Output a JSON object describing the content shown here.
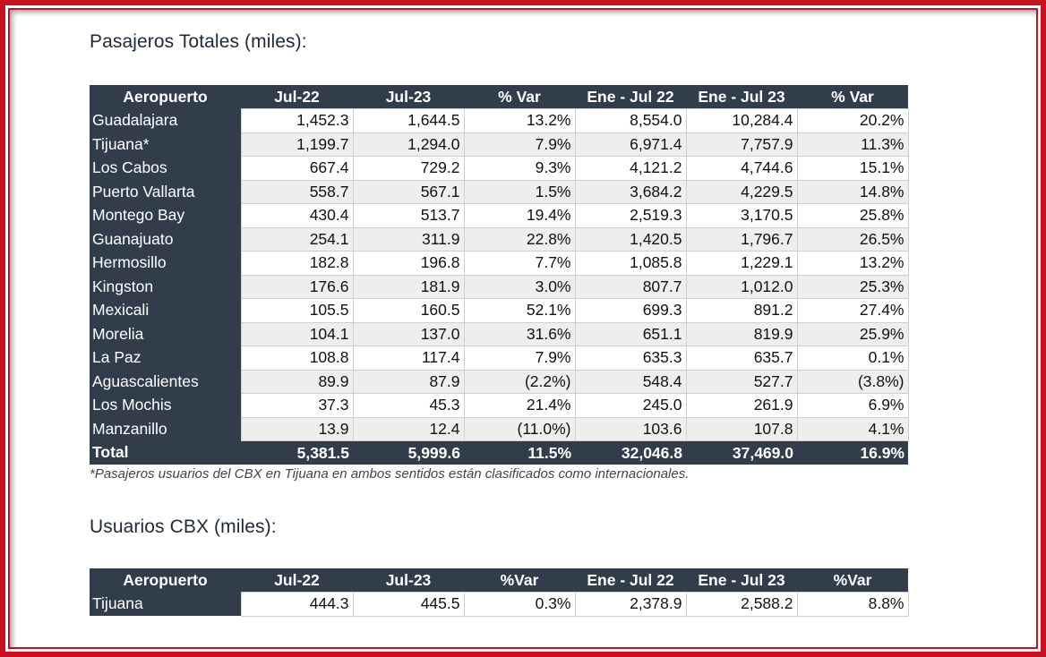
{
  "section1": {
    "title": "Pasajeros Totales (miles):",
    "headers": [
      "Aeropuerto",
      "Jul-22",
      "Jul-23",
      "% Var",
      "Ene - Jul 22",
      "Ene - Jul 23",
      "% Var"
    ],
    "rows": [
      [
        "Guadalajara",
        "1,452.3",
        "1,644.5",
        "13.2%",
        "8,554.0",
        "10,284.4",
        "20.2%"
      ],
      [
        "Tijuana*",
        "1,199.7",
        "1,294.0",
        "7.9%",
        "6,971.4",
        "7,757.9",
        "11.3%"
      ],
      [
        "Los Cabos",
        "667.4",
        "729.2",
        "9.3%",
        "4,121.2",
        "4,744.6",
        "15.1%"
      ],
      [
        "Puerto Vallarta",
        "558.7",
        "567.1",
        "1.5%",
        "3,684.2",
        "4,229.5",
        "14.8%"
      ],
      [
        "Montego Bay",
        "430.4",
        "513.7",
        "19.4%",
        "2,519.3",
        "3,170.5",
        "25.8%"
      ],
      [
        "Guanajuato",
        "254.1",
        "311.9",
        "22.8%",
        "1,420.5",
        "1,796.7",
        "26.5%"
      ],
      [
        "Hermosillo",
        "182.8",
        "196.8",
        "7.7%",
        "1,085.8",
        "1,229.1",
        "13.2%"
      ],
      [
        "Kingston",
        "176.6",
        "181.9",
        "3.0%",
        "807.7",
        "1,012.0",
        "25.3%"
      ],
      [
        "Mexicali",
        "105.5",
        "160.5",
        "52.1%",
        "699.3",
        "891.2",
        "27.4%"
      ],
      [
        "Morelia",
        "104.1",
        "137.0",
        "31.6%",
        "651.1",
        "819.9",
        "25.9%"
      ],
      [
        "La Paz",
        "108.8",
        "117.4",
        "7.9%",
        "635.3",
        "635.7",
        "0.1%"
      ],
      [
        "Aguascalientes",
        "89.9",
        "87.9",
        "(2.2%)",
        "548.4",
        "527.7",
        "(3.8%)"
      ],
      [
        "Los Mochis",
        "37.3",
        "45.3",
        "21.4%",
        "245.0",
        "261.9",
        "6.9%"
      ],
      [
        "Manzanillo",
        "13.9",
        "12.4",
        "(11.0%)",
        "103.6",
        "107.8",
        "4.1%"
      ]
    ],
    "total": [
      "Total",
      "5,381.5",
      "5,999.6",
      "11.5%",
      "32,046.8",
      "37,469.0",
      "16.9%"
    ],
    "note": "*Pasajeros usuarios del CBX en Tijuana en ambos sentidos están clasificados como internacionales."
  },
  "section2": {
    "title": "Usuarios CBX (miles):",
    "headers": [
      "Aeropuerto",
      "Jul-22",
      "Jul-23",
      "%Var",
      "Ene - Jul 22",
      "Ene - Jul 23",
      "%Var"
    ],
    "rows": [
      [
        "Tijuana",
        "444.3",
        "445.5",
        "0.3%",
        "2,378.9",
        "2,588.2",
        "8.8%"
      ]
    ]
  },
  "colors": {
    "frame": "#c8101e",
    "header_bg": "#323d4c",
    "alt_row": "#eeeeee"
  }
}
